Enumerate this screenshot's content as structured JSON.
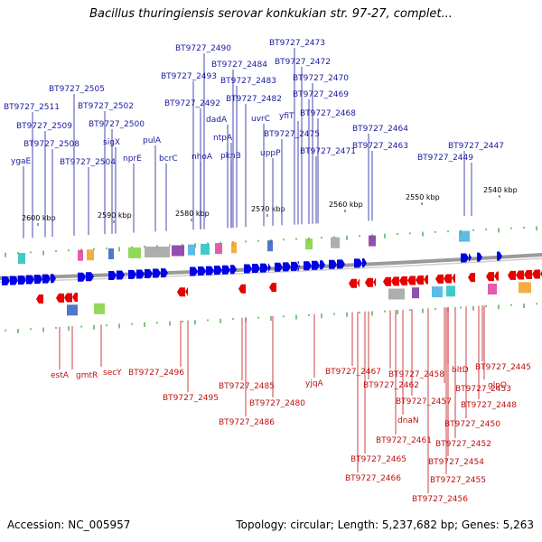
{
  "header": {
    "title": "Bacillus thuringiensis serovar konkukian str. 97-27, complet..."
  },
  "footer": {
    "accession": "Accession: NC_005957",
    "summary": "Topology: circular; Length: 5,237,682 bp; Genes: 5,263"
  },
  "colors": {
    "forward_strand": "#0000e6",
    "reverse_strand": "#e60000",
    "forward_label": "#1a1aa0",
    "reverse_label": "#c01010",
    "backbone": "#9a9a9a",
    "tick_mark": "#2a9a2a"
  },
  "scale_labels": [
    "2600 kbp",
    "2590 kbp",
    "2580 kbp",
    "2570 kbp",
    "2560 kbp",
    "2550 kbp",
    "2540 kbp"
  ],
  "forward_genes": [
    "BT9727_2473",
    "BT9727_2490",
    "BT9727_2472",
    "BT9727_2484",
    "BT9727_2493",
    "BT9727_2470",
    "BT9727_2505",
    "BT9727_2483",
    "BT9727_2469",
    "BT9727_2511",
    "BT9727_2502",
    "BT9727_2492",
    "BT9727_2482",
    "yfiT",
    "dadA",
    "uvrC",
    "BT9727_2468",
    "BT9727_2509",
    "BT9727_2500",
    "BT9727_2464",
    "ntpA",
    "BT9727_2475",
    "sigX",
    "pulA",
    "BT9727_2508",
    "BT9727_2463",
    "BT9727_2447",
    "uppP",
    "BT9727_2471",
    "ygaE",
    "BT9727_2504",
    "nprE",
    "bcrC",
    "nhoA",
    "pknB",
    "BT9727_2449"
  ],
  "reverse_genes": [
    "estA",
    "gmtR",
    "secY",
    "BT9727_2496",
    "BT9727_2495",
    "BT9727_2485",
    "BT9727_2486",
    "BT9727_2480",
    "yjqA",
    "BT9727_2467",
    "BT9727_2462",
    "BT9727_2458",
    "BT9727_2457",
    "BT9727_2453",
    "bltD",
    "BT9727_2445",
    "glpQ",
    "BT9727_2448",
    "dnaN",
    "BT9727_2450",
    "BT9727_2461",
    "BT9727_2452",
    "BT9727_2465",
    "BT9727_2454",
    "BT9727_2466",
    "BT9727_2455",
    "BT9727_2456"
  ]
}
